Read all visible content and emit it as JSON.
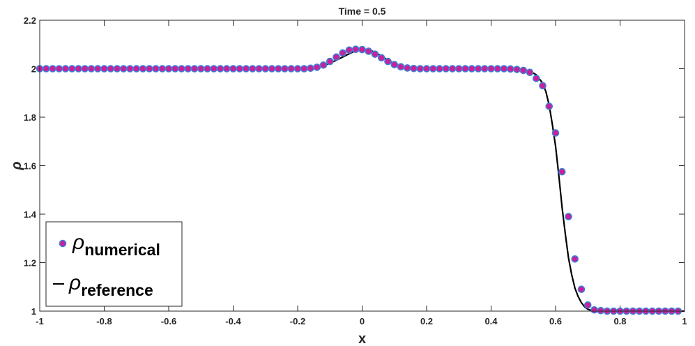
{
  "chart_data": {
    "type": "scatter",
    "title": "Time = 0.5",
    "xlabel": "x",
    "ylabel": "ρ",
    "xlim": [
      -1,
      1
    ],
    "ylim": [
      1,
      2.2
    ],
    "xticks": [
      "-1",
      "-0.8",
      "-0.6",
      "-0.4",
      "-0.2",
      "0",
      "0.2",
      "0.4",
      "0.6",
      "0.8",
      "1"
    ],
    "yticks": [
      "1",
      "1.2",
      "1.4",
      "1.6",
      "1.8",
      "2",
      "2.2"
    ],
    "grid": false,
    "legend_position": "bottom-left",
    "colors": {
      "marker_fill": "#cc1e9a",
      "marker_edge": "#3f7fd6",
      "line": "#000000",
      "axis": "#262626"
    },
    "series": [
      {
        "name": "numerical",
        "symbol": "ρ",
        "style": "markers",
        "x": [
          -1.0,
          -0.98,
          -0.96,
          -0.94,
          -0.92,
          -0.9,
          -0.88,
          -0.86,
          -0.84,
          -0.82,
          -0.8,
          -0.78,
          -0.76,
          -0.74,
          -0.72,
          -0.7,
          -0.68,
          -0.66,
          -0.64,
          -0.62,
          -0.6,
          -0.58,
          -0.56,
          -0.54,
          -0.52,
          -0.5,
          -0.48,
          -0.46,
          -0.44,
          -0.42,
          -0.4,
          -0.38,
          -0.36,
          -0.34,
          -0.32,
          -0.3,
          -0.28,
          -0.26,
          -0.24,
          -0.22,
          -0.2,
          -0.18,
          -0.16,
          -0.14,
          -0.12,
          -0.1,
          -0.08,
          -0.06,
          -0.04,
          -0.02,
          0.0,
          0.02,
          0.04,
          0.06,
          0.08,
          0.1,
          0.12,
          0.14,
          0.16,
          0.18,
          0.2,
          0.22,
          0.24,
          0.26,
          0.28,
          0.3,
          0.32,
          0.34,
          0.36,
          0.38,
          0.4,
          0.42,
          0.44,
          0.46,
          0.48,
          0.5,
          0.52,
          0.54,
          0.56,
          0.58,
          0.6,
          0.62,
          0.64,
          0.66,
          0.68,
          0.7,
          0.72,
          0.74,
          0.76,
          0.78,
          0.8,
          0.82,
          0.84,
          0.86,
          0.88,
          0.9,
          0.92,
          0.94,
          0.96,
          0.98
        ],
        "y": [
          2.0,
          2.0,
          2.0,
          2.0,
          2.0,
          2.0,
          2.0,
          2.0,
          2.0,
          2.0,
          2.0,
          2.0,
          2.0,
          2.0,
          2.0,
          2.0,
          2.0,
          2.0,
          2.0,
          2.0,
          2.0,
          2.0,
          2.0,
          2.0,
          2.0,
          2.0,
          2.0,
          2.0,
          2.0,
          2.0,
          2.0,
          2.0,
          2.0,
          2.0,
          2.0,
          2.0,
          2.0,
          2.0,
          2.0,
          2.0,
          2.0,
          2.0,
          2.002,
          2.006,
          2.015,
          2.03,
          2.048,
          2.065,
          2.077,
          2.08,
          2.079,
          2.072,
          2.06,
          2.045,
          2.03,
          2.017,
          2.008,
          2.003,
          2.001,
          2.0,
          2.0,
          2.0,
          2.0,
          2.0,
          2.0,
          2.0,
          2.0,
          2.0,
          2.0,
          2.0,
          2.0,
          2.0,
          2.0,
          1.999,
          1.997,
          1.993,
          1.985,
          1.96,
          1.93,
          1.845,
          1.735,
          1.575,
          1.39,
          1.215,
          1.09,
          1.025,
          1.005,
          1.002,
          1.0,
          1.0,
          1.0,
          1.0,
          1.0,
          1.0,
          1.0,
          1.0,
          1.0,
          1.0,
          1.0,
          1.0
        ]
      },
      {
        "name": "reference",
        "symbol": "ρ",
        "style": "line",
        "x": [
          -1.0,
          -0.5,
          -0.2,
          -0.16,
          -0.12,
          -0.08,
          -0.04,
          -0.02,
          0.0,
          0.02,
          0.04,
          0.06,
          0.08,
          0.1,
          0.12,
          0.14,
          0.18,
          0.3,
          0.44,
          0.48,
          0.5,
          0.52,
          0.54,
          0.56,
          0.57,
          0.58,
          0.59,
          0.6,
          0.61,
          0.62,
          0.63,
          0.64,
          0.65,
          0.66,
          0.67,
          0.68,
          0.69,
          0.7,
          0.71,
          0.72,
          0.74,
          0.8,
          1.0
        ],
        "y": [
          2.0,
          2.0,
          2.0,
          2.002,
          2.012,
          2.035,
          2.062,
          2.074,
          2.08,
          2.078,
          2.068,
          2.052,
          2.035,
          2.02,
          2.009,
          2.003,
          2.0,
          2.0,
          2.0,
          1.999,
          1.997,
          1.99,
          1.975,
          1.94,
          1.905,
          1.85,
          1.77,
          1.68,
          1.56,
          1.43,
          1.32,
          1.22,
          1.15,
          1.095,
          1.06,
          1.035,
          1.018,
          1.008,
          1.003,
          1.001,
          1.0,
          1.0,
          1.0
        ]
      }
    ]
  }
}
